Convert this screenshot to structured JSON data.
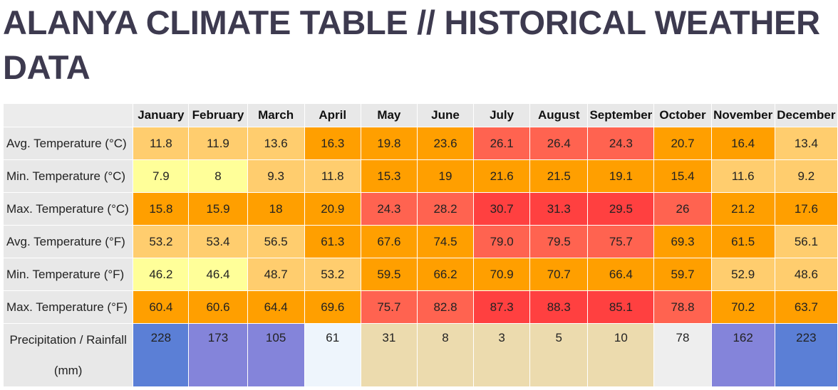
{
  "page": {
    "title": "ALANYA CLIMATE TABLE // HISTORICAL WEATHER DATA"
  },
  "table": {
    "months": [
      "January",
      "February",
      "March",
      "April",
      "May",
      "June",
      "July",
      "August",
      "September",
      "October",
      "November",
      "December"
    ],
    "rows": [
      {
        "label": "Avg. Temperature (°C)",
        "values": [
          "11.8",
          "11.9",
          "13.6",
          "16.3",
          "19.8",
          "23.6",
          "26.1",
          "26.4",
          "24.3",
          "20.7",
          "16.4",
          "13.4"
        ],
        "colors": [
          "#ffcd6e",
          "#ffcd6e",
          "#ffcd6e",
          "#ff9f00",
          "#ff9f00",
          "#ff9f00",
          "#ff6350",
          "#ff6350",
          "#ff6350",
          "#ff9f00",
          "#ff9f00",
          "#ffcd6e"
        ]
      },
      {
        "label": "Min. Temperature (°C)",
        "values": [
          "7.9",
          "8",
          "9.3",
          "11.8",
          "15.3",
          "19",
          "21.6",
          "21.5",
          "19.1",
          "15.4",
          "11.6",
          "9.2"
        ],
        "colors": [
          "#ffff99",
          "#ffff99",
          "#ffcd6e",
          "#ffcd6e",
          "#ff9f00",
          "#ff9f00",
          "#ff9f00",
          "#ff9f00",
          "#ff9f00",
          "#ff9f00",
          "#ffcd6e",
          "#ffcd6e"
        ]
      },
      {
        "label": "Max. Temperature (°C)",
        "values": [
          "15.8",
          "15.9",
          "18",
          "20.9",
          "24.3",
          "28.2",
          "30.7",
          "31.3",
          "29.5",
          "26",
          "21.2",
          "17.6"
        ],
        "colors": [
          "#ff9f00",
          "#ff9f00",
          "#ff9f00",
          "#ff9f00",
          "#ff6350",
          "#ff6350",
          "#ff4040",
          "#ff4040",
          "#ff4040",
          "#ff6350",
          "#ff9f00",
          "#ff9f00"
        ]
      },
      {
        "label": "Avg. Temperature (°F)",
        "values": [
          "53.2",
          "53.4",
          "56.5",
          "61.3",
          "67.6",
          "74.5",
          "79.0",
          "79.5",
          "75.7",
          "69.3",
          "61.5",
          "56.1"
        ],
        "colors": [
          "#ffcd6e",
          "#ffcd6e",
          "#ffcd6e",
          "#ff9f00",
          "#ff9f00",
          "#ff9f00",
          "#ff6350",
          "#ff6350",
          "#ff6350",
          "#ff9f00",
          "#ff9f00",
          "#ffcd6e"
        ]
      },
      {
        "label": "Min. Temperature (°F)",
        "values": [
          "46.2",
          "46.4",
          "48.7",
          "53.2",
          "59.5",
          "66.2",
          "70.9",
          "70.7",
          "66.4",
          "59.7",
          "52.9",
          "48.6"
        ],
        "colors": [
          "#ffff99",
          "#ffff99",
          "#ffcd6e",
          "#ffcd6e",
          "#ff9f00",
          "#ff9f00",
          "#ff9f00",
          "#ff9f00",
          "#ff9f00",
          "#ff9f00",
          "#ffcd6e",
          "#ffcd6e"
        ]
      },
      {
        "label": "Max. Temperature (°F)",
        "values": [
          "60.4",
          "60.6",
          "64.4",
          "69.6",
          "75.7",
          "82.8",
          "87.3",
          "88.3",
          "85.1",
          "78.8",
          "70.2",
          "63.7"
        ],
        "colors": [
          "#ff9f00",
          "#ff9f00",
          "#ff9f00",
          "#ff9f00",
          "#ff6350",
          "#ff6350",
          "#ff4040",
          "#ff4040",
          "#ff4040",
          "#ff6350",
          "#ff9f00",
          "#ff9f00"
        ]
      },
      {
        "label": "Precipitation / Rainfall (mm)",
        "values": [
          "228",
          "173",
          "105",
          "61",
          "31",
          "8",
          "3",
          "5",
          "10",
          "78",
          "162",
          "223"
        ],
        "colors": [
          "#5b7fd6",
          "#8484da",
          "#8484da",
          "#eef5fc",
          "#ecdbae",
          "#ecdbae",
          "#ecdbae",
          "#ecdbae",
          "#ecdbae",
          "#eeeeee",
          "#8484da",
          "#5b7fd6"
        ]
      }
    ]
  }
}
